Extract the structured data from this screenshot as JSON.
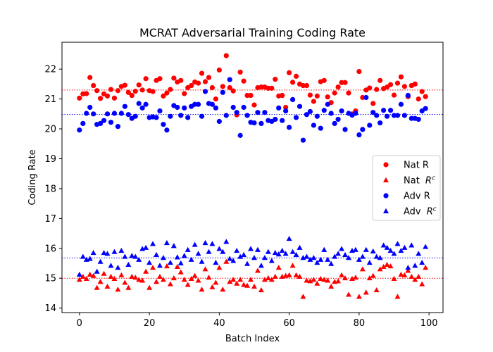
{
  "chart_data": {
    "type": "scatter",
    "title": "MCRAT Adversarial Training Coding Rate",
    "xlabel": "Batch Index",
    "ylabel": "Coding Rate",
    "xlim": [
      -5,
      104
    ],
    "ylim": [
      13.85,
      22.9
    ],
    "xticks": [
      0,
      20,
      40,
      60,
      80,
      100
    ],
    "yticks": [
      14,
      15,
      16,
      17,
      18,
      19,
      20,
      21,
      22
    ],
    "grid": false,
    "legend_position": "center-right",
    "series": [
      {
        "name": "Nat R",
        "legend_label": "Nat R",
        "legend_sup": "",
        "color": "#ff0000",
        "marker": "circle",
        "mean_line": 21.3,
        "values": [
          21.03,
          21.17,
          21.18,
          21.72,
          21.45,
          21.28,
          21.02,
          21.17,
          21.1,
          21.32,
          21.03,
          21.28,
          21.42,
          21.46,
          21.22,
          21.12,
          21.26,
          21.47,
          21.3,
          21.68,
          21.28,
          21.25,
          21.62,
          21.68,
          21.1,
          21.2,
          21.32,
          21.7,
          21.57,
          21.62,
          21.18,
          21.38,
          21.45,
          21.57,
          21.53,
          21.86,
          21.58,
          21.72,
          21.38,
          21.0,
          21.97,
          21.42,
          22.45,
          21.38,
          21.27,
          20.47,
          21.9,
          21.6,
          21.12,
          21.12,
          20.8,
          21.38,
          21.4,
          21.4,
          21.36,
          21.36,
          21.66,
          21.1,
          21.12,
          20.72,
          21.88,
          21.56,
          21.76,
          21.5,
          21.45,
          21.45,
          21.13,
          20.92,
          21.1,
          21.58,
          21.62,
          21.07,
          20.88,
          21.2,
          21.4,
          21.55,
          21.55,
          21.2,
          20.5,
          20.6,
          21.92,
          21.05,
          21.3,
          21.37,
          20.85,
          21.32,
          21.62,
          21.35,
          21.4,
          21.48,
          21.13,
          21.53,
          21.74,
          21.42,
          21.08,
          21.45,
          21.5,
          21.0,
          21.25,
          21.08
        ],
        "x": [
          0,
          1,
          2,
          3,
          4,
          5,
          6,
          7,
          8,
          9,
          10,
          11,
          12,
          13,
          14,
          15,
          16,
          17,
          18,
          19,
          20,
          21,
          22,
          23,
          24,
          25,
          26,
          27,
          28,
          29,
          30,
          31,
          32,
          33,
          34,
          35,
          36,
          37,
          38,
          39,
          40,
          41,
          42,
          43,
          44,
          45,
          46,
          47,
          48,
          49,
          50,
          51,
          52,
          53,
          54,
          55,
          56,
          57,
          58,
          59,
          60,
          61,
          62,
          63,
          64,
          65,
          66,
          67,
          68,
          69,
          70,
          71,
          72,
          73,
          74,
          75,
          76,
          77,
          78,
          79,
          80,
          81,
          82,
          83,
          84,
          85,
          86,
          87,
          88,
          89,
          90,
          91,
          92,
          93,
          94,
          95,
          96,
          97,
          98,
          99
        ]
      },
      {
        "name": "Nat R^c",
        "legend_label": "Nat R",
        "legend_sup": "c",
        "color": "#ff0000",
        "marker": "triangle",
        "mean_line": 15.0,
        "values": [
          14.95,
          15.05,
          14.98,
          15.12,
          15.08,
          14.68,
          14.88,
          15.15,
          14.72,
          15.05,
          14.98,
          14.62,
          15.1,
          14.85,
          14.68,
          15.05,
          15.02,
          14.95,
          14.92,
          15.22,
          14.68,
          15.35,
          14.88,
          15.05,
          14.95,
          15.4,
          14.8,
          15.0,
          15.38,
          15.2,
          14.95,
          14.78,
          14.98,
          15.08,
          14.92,
          14.62,
          15.3,
          15.02,
          14.7,
          14.85,
          15.35,
          14.62,
          15.55,
          14.88,
          14.95,
          14.82,
          14.95,
          14.78,
          14.75,
          14.95,
          14.72,
          15.25,
          14.6,
          14.95,
          15.0,
          14.95,
          15.05,
          15.35,
          15.05,
          15.08,
          15.1,
          15.42,
          15.1,
          15.05,
          14.38,
          14.92,
          14.9,
          14.95,
          14.82,
          14.98,
          14.95,
          14.92,
          14.72,
          14.88,
          14.9,
          15.1,
          15.0,
          14.45,
          14.98,
          15.02,
          14.38,
          15.3,
          14.52,
          15.0,
          15.08,
          14.6,
          15.3,
          15.38,
          15.45,
          15.4,
          14.98,
          14.38,
          15.12,
          15.1,
          15.25,
          15.05,
          14.95,
          15.05,
          14.8,
          15.35
        ],
        "x": [
          0,
          1,
          2,
          3,
          4,
          5,
          6,
          7,
          8,
          9,
          10,
          11,
          12,
          13,
          14,
          15,
          16,
          17,
          18,
          19,
          20,
          21,
          22,
          23,
          24,
          25,
          26,
          27,
          28,
          29,
          30,
          31,
          32,
          33,
          34,
          35,
          36,
          37,
          38,
          39,
          40,
          41,
          42,
          43,
          44,
          45,
          46,
          47,
          48,
          49,
          50,
          51,
          52,
          53,
          54,
          55,
          56,
          57,
          58,
          59,
          60,
          61,
          62,
          63,
          64,
          65,
          66,
          67,
          68,
          69,
          70,
          71,
          72,
          73,
          74,
          75,
          76,
          77,
          78,
          79,
          80,
          81,
          82,
          83,
          84,
          85,
          86,
          87,
          88,
          89,
          90,
          91,
          92,
          93,
          94,
          95,
          96,
          97,
          98,
          99
        ]
      },
      {
        "name": "Adv R",
        "legend_label": "Adv R",
        "legend_sup": "",
        "color": "#0000ff",
        "marker": "circle",
        "mean_line": 20.48,
        "values": [
          19.96,
          20.18,
          20.52,
          20.72,
          20.5,
          20.15,
          20.18,
          20.28,
          20.5,
          20.22,
          20.52,
          20.08,
          20.52,
          20.75,
          20.48,
          20.35,
          20.42,
          20.85,
          20.7,
          20.82,
          20.38,
          20.4,
          20.38,
          20.6,
          20.15,
          19.96,
          20.42,
          20.78,
          20.72,
          20.45,
          20.7,
          20.38,
          20.75,
          20.82,
          20.82,
          20.42,
          21.25,
          20.85,
          20.82,
          20.7,
          20.25,
          21.22,
          20.45,
          21.65,
          20.72,
          20.55,
          19.78,
          20.72,
          20.45,
          20.22,
          20.2,
          20.55,
          20.18,
          20.55,
          20.28,
          20.25,
          20.32,
          20.7,
          20.28,
          20.6,
          20.05,
          20.98,
          20.38,
          20.75,
          19.62,
          20.48,
          20.58,
          20.12,
          20.42,
          20.02,
          20.62,
          20.82,
          20.52,
          20.18,
          20.32,
          20.6,
          19.98,
          20.52,
          20.46,
          20.52,
          19.8,
          19.98,
          21.05,
          20.12,
          20.55,
          20.45,
          20.2,
          20.62,
          20.42,
          20.62,
          20.45,
          20.45,
          20.82,
          20.45,
          21.12,
          20.35,
          20.35,
          20.32,
          20.6,
          20.68
        ],
        "x": [
          0,
          1,
          2,
          3,
          4,
          5,
          6,
          7,
          8,
          9,
          10,
          11,
          12,
          13,
          14,
          15,
          16,
          17,
          18,
          19,
          20,
          21,
          22,
          23,
          24,
          25,
          26,
          27,
          28,
          29,
          30,
          31,
          32,
          33,
          34,
          35,
          36,
          37,
          38,
          39,
          40,
          41,
          42,
          43,
          44,
          45,
          46,
          47,
          48,
          49,
          50,
          51,
          52,
          53,
          54,
          55,
          56,
          57,
          58,
          59,
          60,
          61,
          62,
          63,
          64,
          65,
          66,
          67,
          68,
          69,
          70,
          71,
          72,
          73,
          74,
          75,
          76,
          77,
          78,
          79,
          80,
          81,
          82,
          83,
          84,
          85,
          86,
          87,
          88,
          89,
          90,
          91,
          92,
          93,
          94,
          95,
          96,
          97,
          98,
          99
        ]
      },
      {
        "name": "Adv R^c",
        "legend_label": "Adv R",
        "legend_sup": "c",
        "color": "#0000ff",
        "marker": "triangle",
        "mean_line": 15.68,
        "values": [
          15.12,
          15.72,
          15.62,
          15.65,
          15.85,
          15.22,
          15.55,
          15.85,
          15.82,
          15.42,
          15.88,
          15.35,
          15.92,
          15.72,
          15.45,
          15.75,
          15.72,
          15.62,
          15.98,
          16.02,
          15.52,
          16.15,
          15.78,
          15.42,
          15.68,
          16.18,
          15.52,
          16.08,
          15.7,
          15.5,
          15.75,
          15.95,
          15.62,
          16.12,
          15.82,
          15.55,
          16.18,
          15.88,
          16.15,
          15.52,
          15.98,
          15.88,
          16.22,
          15.65,
          15.58,
          15.92,
          15.72,
          15.78,
          15.48,
          15.98,
          15.68,
          15.95,
          15.42,
          15.68,
          15.88,
          15.58,
          15.85,
          15.8,
          15.92,
          15.82,
          16.32,
          15.88,
          15.78,
          16.02,
          15.68,
          15.72,
          15.62,
          15.68,
          15.52,
          15.62,
          15.95,
          15.62,
          15.48,
          15.72,
          15.82,
          15.98,
          15.78,
          15.68,
          15.92,
          15.95,
          15.62,
          15.72,
          15.95,
          15.52,
          15.9,
          15.72,
          15.68,
          16.1,
          16.02,
          15.92,
          15.82,
          16.15,
          15.92,
          16.02,
          15.35,
          16.1,
          15.42,
          15.82,
          15.52,
          16.05
        ],
        "x": [
          0,
          1,
          2,
          3,
          4,
          5,
          6,
          7,
          8,
          9,
          10,
          11,
          12,
          13,
          14,
          15,
          16,
          17,
          18,
          19,
          20,
          21,
          22,
          23,
          24,
          25,
          26,
          27,
          28,
          29,
          30,
          31,
          32,
          33,
          34,
          35,
          36,
          37,
          38,
          39,
          40,
          41,
          42,
          43,
          44,
          45,
          46,
          47,
          48,
          49,
          50,
          51,
          52,
          53,
          54,
          55,
          56,
          57,
          58,
          59,
          60,
          61,
          62,
          63,
          64,
          65,
          66,
          67,
          68,
          69,
          70,
          71,
          72,
          73,
          74,
          75,
          76,
          77,
          78,
          79,
          80,
          81,
          82,
          83,
          84,
          85,
          86,
          87,
          88,
          89,
          90,
          91,
          92,
          93,
          94,
          95,
          96,
          97,
          98,
          99
        ]
      }
    ]
  }
}
